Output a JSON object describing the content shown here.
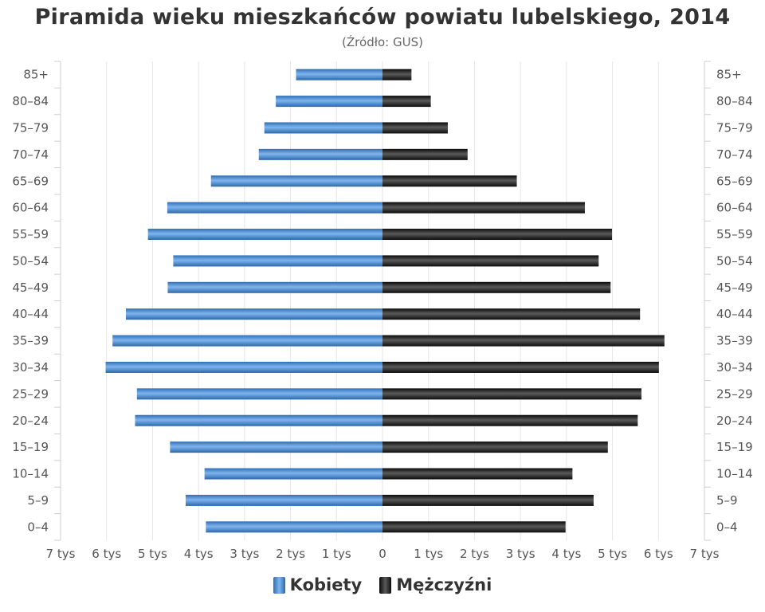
{
  "chart_data": {
    "type": "bar",
    "title": "Piramida wieku mieszkańców powiatu lubelskiego, 2014",
    "subtitle": "(Źródło: GUS)",
    "categories": [
      "85+",
      "80-84",
      "75-79",
      "70-74",
      "65-69",
      "60-64",
      "55-59",
      "50-54",
      "45-49",
      "40-44",
      "35-39",
      "30-34",
      "25-29",
      "20-24",
      "15-19",
      "10-14",
      "5-9",
      "0-4"
    ],
    "category_labels": [
      "85+",
      "80–84",
      "75–79",
      "70–74",
      "65–69",
      "60–64",
      "55–59",
      "50–54",
      "45–49",
      "40–44",
      "35–39",
      "30–34",
      "25–29",
      "20–24",
      "15–19",
      "10–14",
      "5–9",
      "0–4"
    ],
    "series": [
      {
        "name": "Kobiety",
        "side": "left",
        "color": "#4a8fd6",
        "values": [
          1880,
          2320,
          2570,
          2690,
          3730,
          4680,
          5100,
          4550,
          4670,
          5580,
          5870,
          6020,
          5340,
          5380,
          4620,
          3870,
          4280,
          3840
        ]
      },
      {
        "name": "Mężczyźni",
        "side": "right",
        "color": "#1e1e1e",
        "values": [
          630,
          1050,
          1420,
          1850,
          2920,
          4400,
          4990,
          4700,
          4960,
          5600,
          6130,
          6010,
          5630,
          5550,
          4900,
          4130,
          4590,
          3980
        ]
      }
    ],
    "xlim": [
      -7000,
      7000
    ],
    "x_ticks": [
      -7000,
      -6000,
      -5000,
      -4000,
      -3000,
      -2000,
      -1000,
      0,
      1000,
      2000,
      3000,
      4000,
      5000,
      6000,
      7000
    ],
    "x_tick_labels": [
      "7 tys",
      "6 tys",
      "5 tys",
      "4 tys",
      "3 tys",
      "2 tys",
      "1 tys",
      "0",
      "1 tys",
      "2 tys",
      "3 tys",
      "4 tys",
      "5 tys",
      "6 tys",
      "7 tys"
    ],
    "grid": true,
    "legend_position": "bottom-center"
  },
  "colors": {
    "female": "#4a8fd6",
    "male": "#1e1e1e",
    "grid": "#e6e6e6"
  }
}
